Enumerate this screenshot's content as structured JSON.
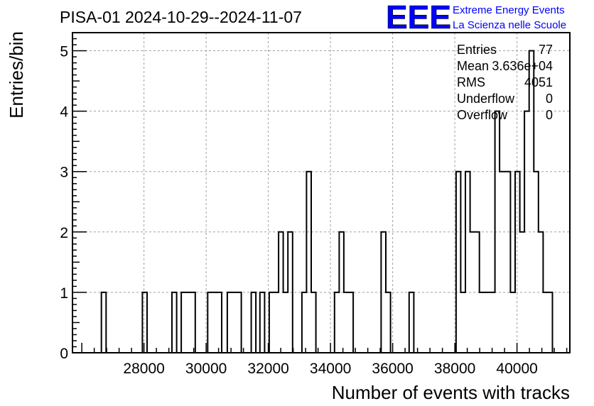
{
  "logo": {
    "mark": "EEE",
    "line1": "Extreme Energy Events",
    "line2": "La Scienza nelle Scuole",
    "color": "#0000ff"
  },
  "stats": {
    "rows": [
      {
        "label": "Entries",
        "value": "77"
      },
      {
        "label": "Mean",
        "value": "3.636e+04"
      },
      {
        "label": "RMS",
        "value": "4051"
      },
      {
        "label": "Underflow",
        "value": "0"
      },
      {
        "label": "Overflow",
        "value": "0"
      }
    ]
  },
  "chart_data": {
    "type": "bar",
    "title": "PISA-01 2024-10-29--2024-11-07",
    "xlabel": "Number of events with tracks",
    "ylabel": "Entries/bin",
    "xlim": [
      25700,
      41700
    ],
    "ylim": [
      0,
      5.3
    ],
    "xticks": [
      28000,
      30000,
      32000,
      34000,
      36000,
      38000,
      40000
    ],
    "yticks": [
      0,
      1,
      2,
      3,
      4,
      5
    ],
    "grid": true,
    "line_color": "#000000",
    "bins": [
      {
        "x0": 26630,
        "x1": 26780,
        "y": 1
      },
      {
        "x0": 27950,
        "x1": 28100,
        "y": 1
      },
      {
        "x0": 28900,
        "x1": 29050,
        "y": 1
      },
      {
        "x0": 29200,
        "x1": 29650,
        "y": 1
      },
      {
        "x0": 30050,
        "x1": 30500,
        "y": 1
      },
      {
        "x0": 30680,
        "x1": 31130,
        "y": 1
      },
      {
        "x0": 31450,
        "x1": 31600,
        "y": 1
      },
      {
        "x0": 31730,
        "x1": 31880,
        "y": 1
      },
      {
        "x0": 32030,
        "x1": 32330,
        "y": 1
      },
      {
        "x0": 32330,
        "x1": 32480,
        "y": 2
      },
      {
        "x0": 32480,
        "x1": 32630,
        "y": 1
      },
      {
        "x0": 32630,
        "x1": 32780,
        "y": 2
      },
      {
        "x0": 33080,
        "x1": 33230,
        "y": 1
      },
      {
        "x0": 33230,
        "x1": 33380,
        "y": 3
      },
      {
        "x0": 33380,
        "x1": 33530,
        "y": 1
      },
      {
        "x0": 34130,
        "x1": 34280,
        "y": 1
      },
      {
        "x0": 34280,
        "x1": 34430,
        "y": 2
      },
      {
        "x0": 34430,
        "x1": 34730,
        "y": 1
      },
      {
        "x0": 35630,
        "x1": 35780,
        "y": 2
      },
      {
        "x0": 35780,
        "x1": 35930,
        "y": 1
      },
      {
        "x0": 36530,
        "x1": 36680,
        "y": 1
      },
      {
        "x0": 38040,
        "x1": 38190,
        "y": 3
      },
      {
        "x0": 38190,
        "x1": 38340,
        "y": 1
      },
      {
        "x0": 38340,
        "x1": 38490,
        "y": 3
      },
      {
        "x0": 38490,
        "x1": 38790,
        "y": 2
      },
      {
        "x0": 38790,
        "x1": 39290,
        "y": 1
      },
      {
        "x0": 39290,
        "x1": 39440,
        "y": 4
      },
      {
        "x0": 39440,
        "x1": 39790,
        "y": 3
      },
      {
        "x0": 39790,
        "x1": 39940,
        "y": 1
      },
      {
        "x0": 39940,
        "x1": 40090,
        "y": 3
      },
      {
        "x0": 40090,
        "x1": 40240,
        "y": 2
      },
      {
        "x0": 40240,
        "x1": 40390,
        "y": 4
      },
      {
        "x0": 40390,
        "x1": 40540,
        "y": 5
      },
      {
        "x0": 40540,
        "x1": 40690,
        "y": 3
      },
      {
        "x0": 40690,
        "x1": 40840,
        "y": 2
      },
      {
        "x0": 40840,
        "x1": 41140,
        "y": 1
      }
    ]
  }
}
